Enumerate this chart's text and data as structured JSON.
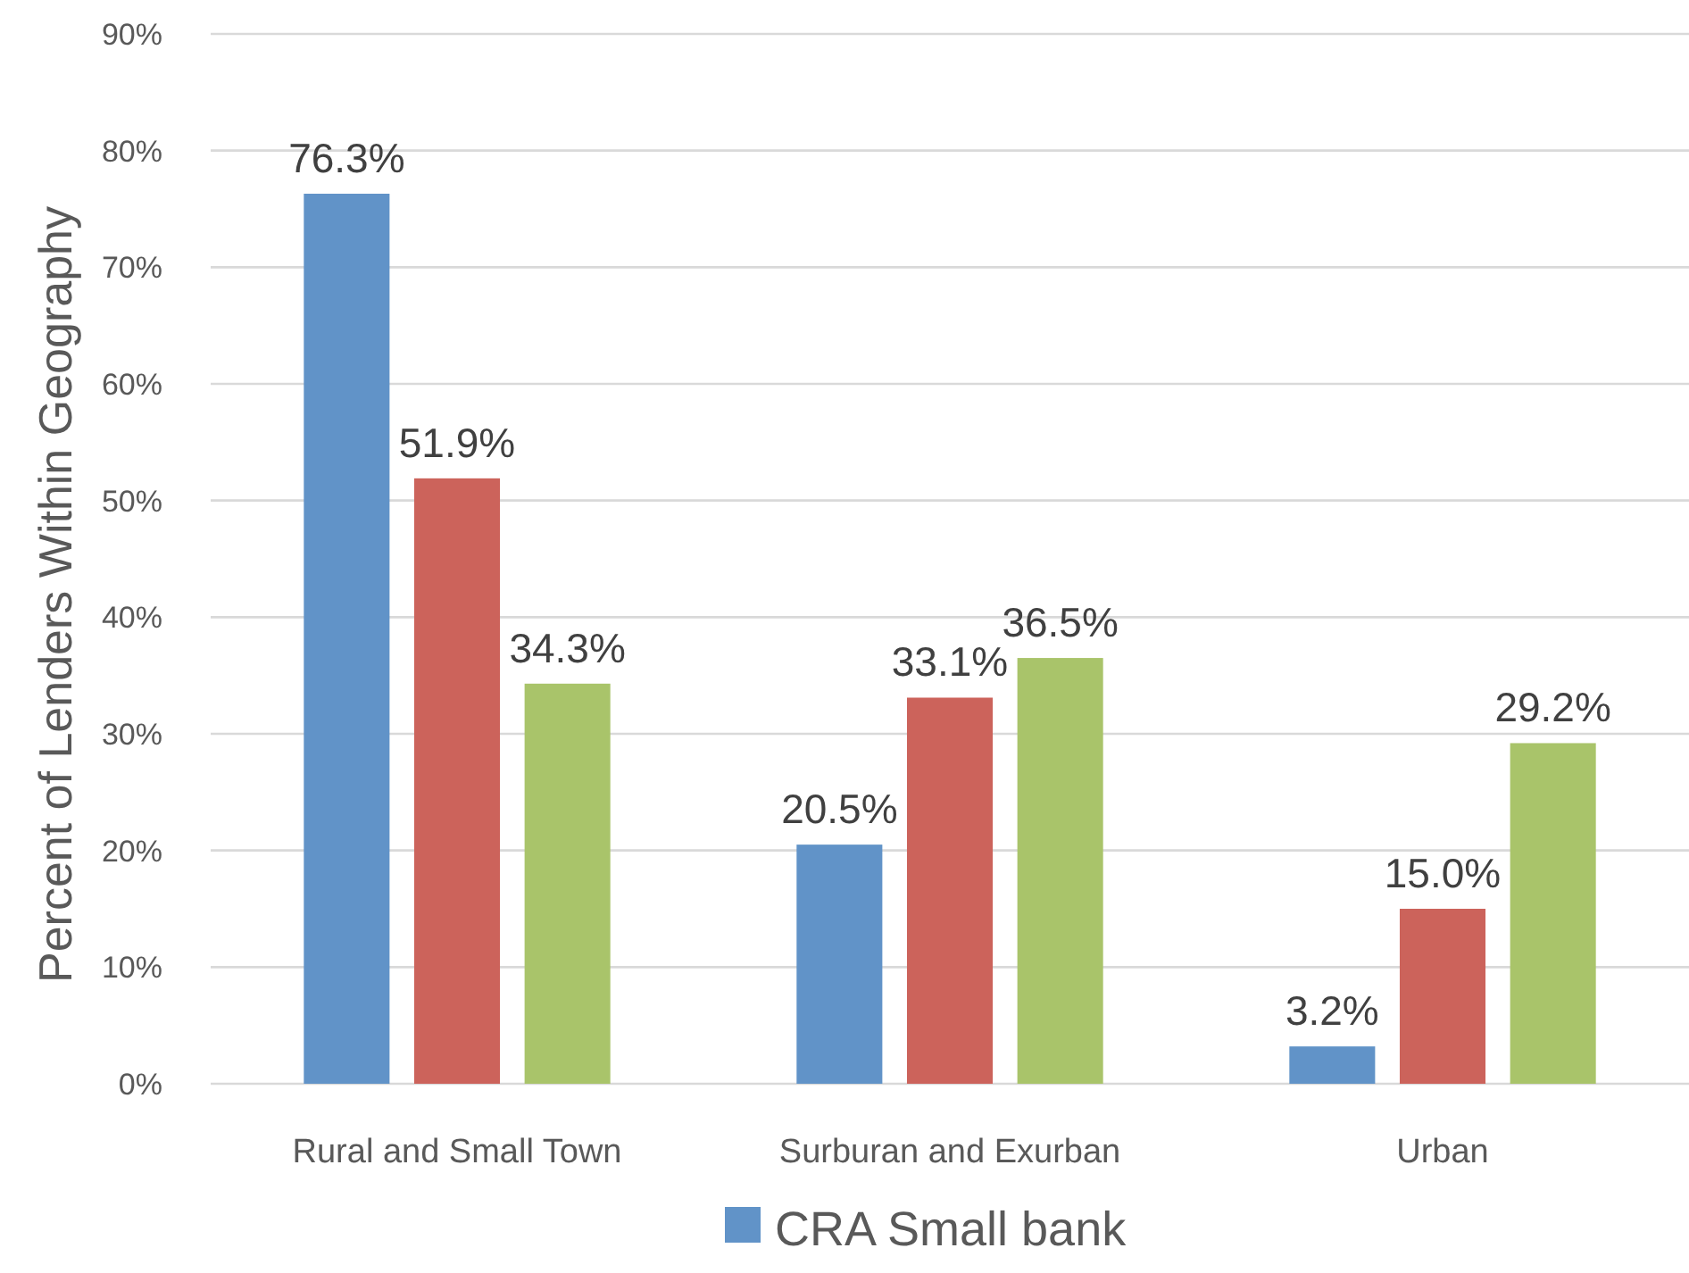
{
  "chart_data": {
    "type": "bar",
    "ylabel": "Percent of Lenders Within Geography",
    "categories": [
      "Rural and Small Town",
      "Surburan and Exurban",
      "Urban"
    ],
    "series": [
      {
        "name": "CRA Small bank",
        "color": "#6193c8",
        "values": [
          76.3,
          20.5,
          3.2
        ],
        "value_labels": [
          "76.3%",
          "20.5%",
          "3.2%"
        ]
      },
      {
        "color": "#cc635b",
        "values": [
          51.9,
          33.1,
          15.0
        ],
        "value_labels": [
          "51.9%",
          "33.1%",
          "15.0%"
        ]
      },
      {
        "color": "#a9c46a",
        "values": [
          34.3,
          36.5,
          29.2
        ],
        "value_labels": [
          "34.3%",
          "36.5%",
          "29.2%"
        ]
      }
    ],
    "ylim": [
      0,
      90
    ],
    "yticks": [
      {
        "value": 0,
        "label": "0%"
      },
      {
        "value": 10,
        "label": "10%"
      },
      {
        "value": 20,
        "label": "20%"
      },
      {
        "value": 30,
        "label": "30%"
      },
      {
        "value": 40,
        "label": "40%"
      },
      {
        "value": 50,
        "label": "50%"
      },
      {
        "value": 60,
        "label": "60%"
      },
      {
        "value": 70,
        "label": "70%"
      },
      {
        "value": 80,
        "label": "80%"
      },
      {
        "value": 90,
        "label": "90%"
      }
    ],
    "grid": "y",
    "legend": "bottom"
  }
}
